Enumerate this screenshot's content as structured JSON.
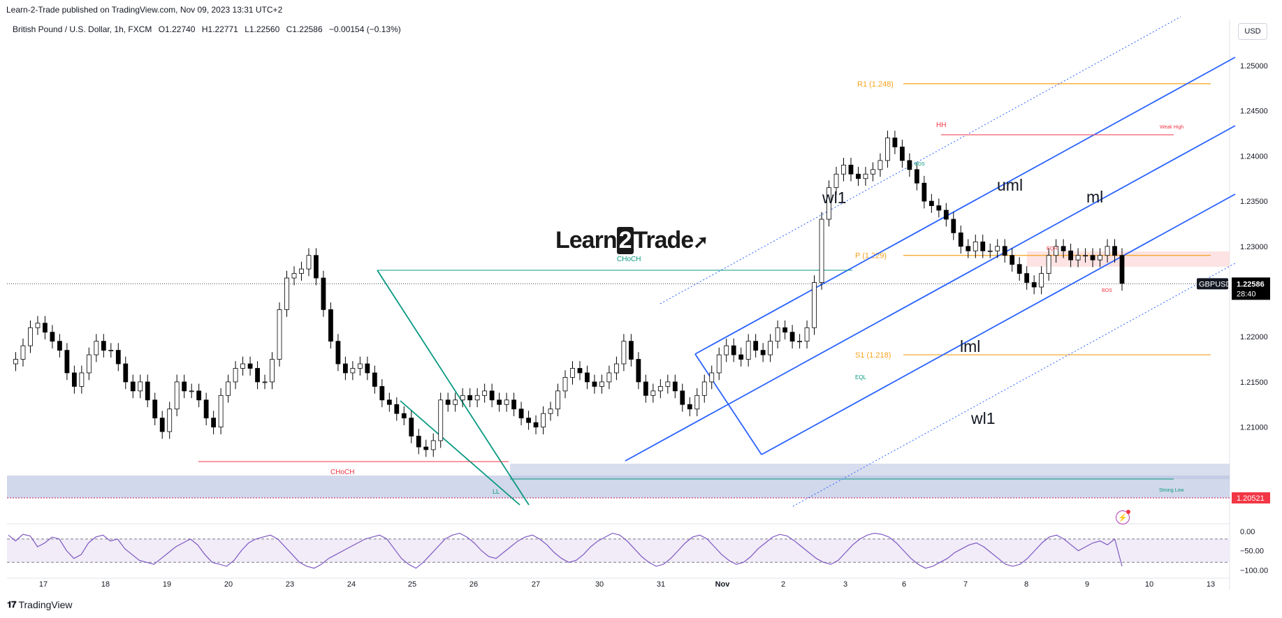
{
  "header": {
    "publisher": "Learn-2-Trade published on TradingView.com, Nov 09, 2023 13:31 UTC+2",
    "symbol_title": "British Pound / U.S. Dollar, 1h, FXCM",
    "ohlc": {
      "open": "O1.22740",
      "high": "H1.22771",
      "low": "L1.22560",
      "close": "C1.22586",
      "change": "−0.00154 (−0.13%)"
    },
    "currency_button": "USD"
  },
  "footer": {
    "logo_text": "TradingView"
  },
  "brand": {
    "left": "Learn",
    "two": "2",
    "right": "Trade",
    "arrow": "➚"
  },
  "chart_data": {
    "type": "candlestick",
    "symbol": "GBPUSD",
    "last_price": "1.22586",
    "countdown": "28:40",
    "strong_low_price": "1.20521",
    "x_ticks": [
      "17",
      "18",
      "19",
      "20",
      "23",
      "24",
      "25",
      "26",
      "27",
      "30",
      "31",
      "Nov",
      "2",
      "3",
      "6",
      "7",
      "8",
      "9",
      "10",
      "13"
    ],
    "y_ticks": [
      "1.25000",
      "1.24500",
      "1.24000",
      "1.23500",
      "1.23000",
      "1.22000",
      "1.21500",
      "1.21000"
    ],
    "ylim": [
      1.2,
      1.2535
    ],
    "price_path": [
      [
        0,
        1.217
      ],
      [
        1,
        1.2175
      ],
      [
        2,
        1.219
      ],
      [
        3,
        1.221
      ],
      [
        4,
        1.2215
      ],
      [
        5,
        1.2205
      ],
      [
        6,
        1.2195
      ],
      [
        7,
        1.2185
      ],
      [
        8,
        1.216
      ],
      [
        9,
        1.2145
      ],
      [
        10,
        1.216
      ],
      [
        11,
        1.218
      ],
      [
        12,
        1.2195
      ],
      [
        13,
        1.2185
      ],
      [
        14,
        1.2185
      ],
      [
        15,
        1.217
      ],
      [
        16,
        1.215
      ],
      [
        17,
        1.214
      ],
      [
        18,
        1.215
      ],
      [
        19,
        1.213
      ],
      [
        20,
        1.211
      ],
      [
        21,
        1.2095
      ],
      [
        22,
        1.212
      ],
      [
        23,
        1.215
      ],
      [
        24,
        1.214
      ],
      [
        25,
        1.214
      ],
      [
        26,
        1.213
      ],
      [
        27,
        1.211
      ],
      [
        28,
        1.21
      ],
      [
        29,
        1.2135
      ],
      [
        30,
        1.215
      ],
      [
        31,
        1.2165
      ],
      [
        32,
        1.217
      ],
      [
        33,
        1.2165
      ],
      [
        34,
        1.215
      ],
      [
        35,
        1.215
      ],
      [
        36,
        1.2175
      ],
      [
        37,
        1.223
      ],
      [
        38,
        1.2265
      ],
      [
        39,
        1.227
      ],
      [
        40,
        1.2275
      ],
      [
        41,
        1.229
      ],
      [
        42,
        1.2265
      ],
      [
        43,
        1.223
      ],
      [
        44,
        1.2195
      ],
      [
        45,
        1.217
      ],
      [
        46,
        1.216
      ],
      [
        47,
        1.2165
      ],
      [
        48,
        1.217
      ],
      [
        49,
        1.216
      ],
      [
        50,
        1.2145
      ],
      [
        51,
        1.213
      ],
      [
        52,
        1.2125
      ],
      [
        53,
        1.2115
      ],
      [
        54,
        1.211
      ],
      [
        55,
        1.209
      ],
      [
        56,
        1.2078
      ],
      [
        57,
        1.2075
      ],
      [
        58,
        1.2085
      ],
      [
        59,
        1.213
      ],
      [
        60,
        1.2125
      ],
      [
        61,
        1.213
      ],
      [
        62,
        1.2135
      ],
      [
        63,
        1.213
      ],
      [
        64,
        1.2135
      ],
      [
        65,
        1.214
      ],
      [
        66,
        1.213
      ],
      [
        67,
        1.2125
      ],
      [
        68,
        1.213
      ],
      [
        69,
        1.212
      ],
      [
        70,
        1.211
      ],
      [
        71,
        1.2105
      ],
      [
        72,
        1.21
      ],
      [
        73,
        1.2115
      ],
      [
        74,
        1.212
      ],
      [
        75,
        1.214
      ],
      [
        76,
        1.2155
      ],
      [
        77,
        1.2165
      ],
      [
        78,
        1.216
      ],
      [
        79,
        1.215
      ],
      [
        80,
        1.2145
      ],
      [
        81,
        1.215
      ],
      [
        82,
        1.216
      ],
      [
        83,
        1.217
      ],
      [
        84,
        1.2195
      ],
      [
        85,
        1.2175
      ],
      [
        86,
        1.215
      ],
      [
        87,
        1.2135
      ],
      [
        88,
        1.214
      ],
      [
        89,
        1.2145
      ],
      [
        90,
        1.215
      ],
      [
        91,
        1.214
      ],
      [
        92,
        1.2125
      ],
      [
        93,
        1.212
      ],
      [
        94,
        1.2135
      ],
      [
        95,
        1.215
      ],
      [
        96,
        1.216
      ],
      [
        97,
        1.218
      ],
      [
        98,
        1.219
      ],
      [
        99,
        1.218
      ],
      [
        100,
        1.2175
      ],
      [
        101,
        1.2195
      ],
      [
        102,
        1.2185
      ],
      [
        103,
        1.218
      ],
      [
        104,
        1.2195
      ],
      [
        105,
        1.221
      ],
      [
        106,
        1.2205
      ],
      [
        107,
        1.2195
      ],
      [
        108,
        1.2195
      ],
      [
        109,
        1.221
      ],
      [
        110,
        1.226
      ],
      [
        111,
        1.233
      ],
      [
        112,
        1.2365
      ],
      [
        113,
        1.238
      ],
      [
        114,
        1.239
      ],
      [
        115,
        1.238
      ],
      [
        116,
        1.2375
      ],
      [
        117,
        1.238
      ],
      [
        118,
        1.2385
      ],
      [
        119,
        1.2395
      ],
      [
        120,
        1.242
      ],
      [
        121,
        1.241
      ],
      [
        122,
        1.2395
      ],
      [
        123,
        1.2385
      ],
      [
        124,
        1.237
      ],
      [
        125,
        1.235
      ],
      [
        126,
        1.2345
      ],
      [
        127,
        1.234
      ],
      [
        128,
        1.233
      ],
      [
        129,
        1.2315
      ],
      [
        130,
        1.23
      ],
      [
        131,
        1.2295
      ],
      [
        132,
        1.2305
      ],
      [
        133,
        1.2295
      ],
      [
        134,
        1.2295
      ],
      [
        135,
        1.23
      ],
      [
        136,
        1.229
      ],
      [
        137,
        1.228
      ],
      [
        138,
        1.227
      ],
      [
        139,
        1.226
      ],
      [
        140,
        1.2255
      ],
      [
        141,
        1.227
      ],
      [
        142,
        1.229
      ],
      [
        143,
        1.23
      ],
      [
        144,
        1.2295
      ],
      [
        145,
        1.2285
      ],
      [
        146,
        1.229
      ],
      [
        147,
        1.229
      ],
      [
        148,
        1.2285
      ],
      [
        149,
        1.229
      ],
      [
        150,
        1.23
      ],
      [
        151,
        1.229
      ],
      [
        152,
        1.2259
      ]
    ],
    "pivot_levels": [
      {
        "label": "R1 (1.248)",
        "value": 1.248,
        "color": "#f7a21b"
      },
      {
        "label": "P (1.229)",
        "value": 1.229,
        "color": "#f7a21b"
      },
      {
        "label": "S1 (1.218)",
        "value": 1.218,
        "color": "#f7a21b"
      }
    ],
    "pitchfork_labels": {
      "uml": "uml",
      "ml": "ml",
      "lml": "lml",
      "wl1_top": "wl1",
      "wl1_bottom": "wl1"
    },
    "structure_labels": {
      "choch_top": "CHoCH",
      "choch_bottom": "CHoCH",
      "hh": "HH",
      "weak_high": "Weak High",
      "bos_top": "BOS",
      "bos_right": "BOS",
      "eqh": "EQH",
      "eql": "EQL",
      "ll": "LL",
      "strong_low": "Strong Low"
    },
    "oscillator": {
      "y_ticks": [
        "0.00",
        "−50.00",
        "−100.00"
      ],
      "ylim": [
        -110,
        5
      ],
      "band": [
        -80,
        -20
      ],
      "values": [
        -10,
        -25,
        -8,
        -12,
        -40,
        -30,
        -15,
        -20,
        -50,
        -70,
        -60,
        -30,
        -15,
        -10,
        -25,
        -20,
        -45,
        -60,
        -75,
        -80,
        -85,
        -70,
        -55,
        -40,
        -30,
        -20,
        -35,
        -60,
        -80,
        -85,
        -90,
        -75,
        -50,
        -30,
        -20,
        -15,
        -10,
        -20,
        -40,
        -60,
        -80,
        -90,
        -95,
        -85,
        -70,
        -60,
        -50,
        -40,
        -30,
        -20,
        -15,
        -10,
        -20,
        -45,
        -70,
        -85,
        -95,
        -80,
        -60,
        -40,
        -20,
        -10,
        -5,
        -15,
        -30,
        -50,
        -65,
        -70,
        -55,
        -40,
        -25,
        -15,
        -10,
        -20,
        -35,
        -55,
        -70,
        -80,
        -75,
        -60,
        -40,
        -25,
        -15,
        -5,
        -10,
        -25,
        -45,
        -65,
        -80,
        -90,
        -85,
        -70,
        -50,
        -30,
        -15,
        -10,
        -20,
        -40,
        -60,
        -75,
        -85,
        -80,
        -65,
        -45,
        -30,
        -15,
        -8,
        -12,
        -25,
        -40,
        -55,
        -70,
        -80,
        -85,
        -75,
        -55,
        -35,
        -20,
        -10,
        -5,
        -8,
        -15,
        -30,
        -50,
        -70,
        -85,
        -95,
        -90,
        -80,
        -70,
        -55,
        -45,
        -35,
        -30,
        -40,
        -55,
        -70,
        -85,
        -90,
        -85,
        -70,
        -50,
        -30,
        -15,
        -10,
        -20,
        -35,
        -50,
        -40,
        -30,
        -25,
        -35,
        -20,
        -90
      ]
    }
  }
}
